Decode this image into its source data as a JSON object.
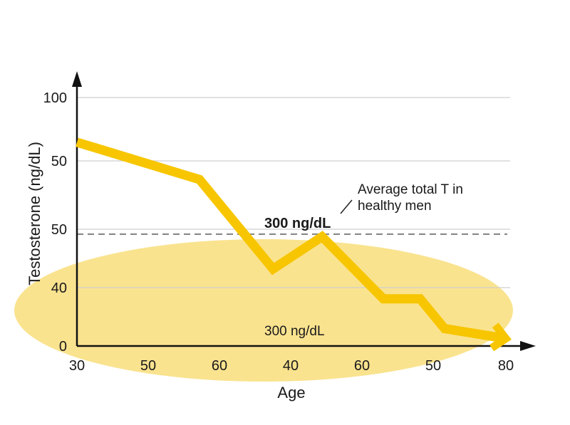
{
  "chart_data": {
    "type": "line",
    "ylabel": "Testosterone (ng/dL)",
    "xlabel": "Age",
    "x_ticks": [
      "30",
      "50",
      "60",
      "40",
      "60",
      "50",
      "80"
    ],
    "y_ticks": [
      "0",
      "40",
      "50",
      "50",
      "100"
    ],
    "grid": true,
    "series": [
      {
        "color": "#f7c600",
        "points": [
          {
            "x": 30,
            "y": 82
          },
          {
            "x": 50,
            "y": 67
          },
          {
            "x": 62,
            "y": 31
          },
          {
            "x": 70,
            "y": 44
          },
          {
            "x": 80,
            "y": 19
          },
          {
            "x": 86,
            "y": 19
          },
          {
            "x": 90,
            "y": 7
          },
          {
            "x": 100,
            "y": 3
          }
        ]
      }
    ],
    "reference_line": {
      "y": 45,
      "label": "300 ng/dL",
      "style": "dashed",
      "color": "#888888"
    },
    "annotations": [
      {
        "text_lines": [
          "Average total T in",
          "healthy men"
        ]
      },
      {
        "text": "300 ng/dL"
      }
    ],
    "highlight_color": "#f7d24a"
  }
}
